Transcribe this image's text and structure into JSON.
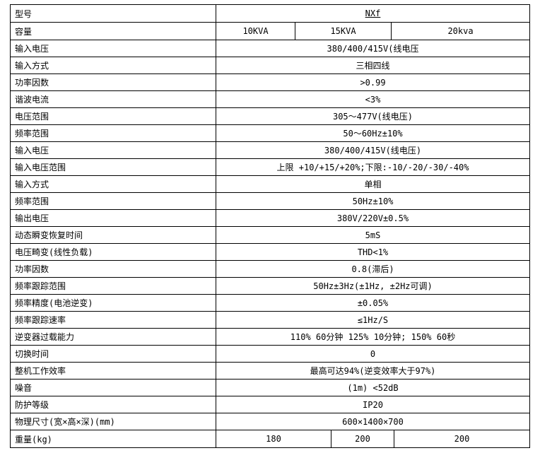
{
  "table": {
    "rows": [
      {
        "label": "型号",
        "value": "NXf"
      },
      {
        "label": "容量",
        "cells": [
          "10KVA",
          "15KVA",
          "20kva"
        ]
      },
      {
        "label": "输入电压",
        "value": "380/400/415V(线电压"
      },
      {
        "label": "输入方式",
        "value": "三相四线"
      },
      {
        "label": "功率因数",
        "value": ">0.99"
      },
      {
        "label": "谐波电流",
        "value": "<3%"
      },
      {
        "label": "电压范围",
        "value": "305～477V(线电压)"
      },
      {
        "label": "频率范围",
        "value": "50～60Hz±10%"
      },
      {
        "label": "输入电压",
        "value": "380/400/415V(线电压)"
      },
      {
        "label": "输入电压范围",
        "value": "上限 +10/+15/+20%;下限:-10/-20/-30/-40%"
      },
      {
        "label": "输入方式",
        "value": "单相"
      },
      {
        "label": "频率范围",
        "value": "50Hz±10%"
      },
      {
        "label": "输出电压",
        "value": "380V/220V±0.5%"
      },
      {
        "label": "动态瞬变恢复时间",
        "value": "5mS"
      },
      {
        "label": "电压畸变(线性负载)",
        "value": "THD<1%"
      },
      {
        "label": "功率因数",
        "value": "0.8(滞后)"
      },
      {
        "label": "频率跟踪范围",
        "value": "50Hz±3Hz(±1Hz, ±2Hz可调)"
      },
      {
        "label": "频率精度(电池逆变)",
        "value": "±0.05%"
      },
      {
        "label": "频率跟踪速率",
        "value": "≤1Hz/S"
      },
      {
        "label": "逆变器过载能力",
        "value": "110% 60分钟 125% 10分钟; 150% 60秒"
      },
      {
        "label": "切换时间",
        "value": "0"
      },
      {
        "label": "整机工作效率",
        "value": "最高可达94%(逆变效率大于97%)"
      },
      {
        "label": "噪音",
        "value": "(1m) <52dB"
      },
      {
        "label": "防护等级",
        "value": "IP20"
      },
      {
        "label": "物理尺寸(宽×高×深)(mm)",
        "value": "600×1400×700"
      },
      {
        "label": "重量(kg)",
        "cells": [
          "180",
          "200",
          "200"
        ]
      }
    ]
  }
}
